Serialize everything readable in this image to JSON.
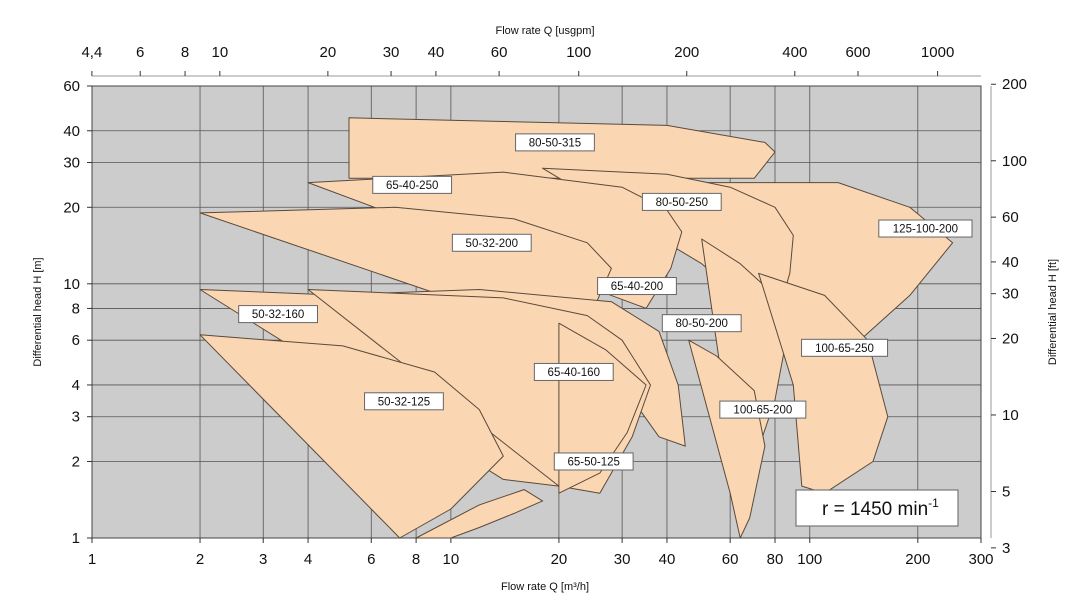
{
  "chart_data": {
    "type": "area",
    "title": "",
    "xlabel": "Flow rate Q [m³/h]",
    "ylabel": "Differential head H [m]",
    "x2label": "Flow rate Q [usgpm]",
    "y2label": "Differential head H [ft]",
    "xscale": "log",
    "yscale": "log",
    "xlim": [
      1,
      300
    ],
    "ylim": [
      1,
      60
    ],
    "grid": true,
    "plot_background": "#cccccc",
    "curve_fill": "#fbd6b3",
    "x_ticks": [
      1,
      2,
      3,
      4,
      6,
      8,
      10,
      20,
      30,
      40,
      60,
      80,
      100,
      200,
      300
    ],
    "y_ticks": [
      1,
      2,
      3,
      4,
      6,
      8,
      10,
      20,
      30,
      40,
      60
    ],
    "x2_ticks": [
      4.4,
      6,
      8,
      10,
      20,
      30,
      40,
      60,
      100,
      200,
      400,
      600,
      1000
    ],
    "y2_ticks": [
      3,
      5,
      10,
      20,
      30,
      40,
      60,
      100,
      200
    ],
    "x2_tick_labels": [
      "4,4",
      "6",
      "8",
      "10",
      "20",
      "30",
      "40",
      "60",
      "100",
      "200",
      "400",
      "600",
      "1000"
    ],
    "speed_label": "r = 1450 min",
    "speed_sup": "-1",
    "curves": [
      {
        "name": "80-50-315",
        "label": [
          19.5,
          36
        ],
        "points": [
          [
            5.2,
            45
          ],
          [
            40,
            42
          ],
          [
            75,
            36
          ],
          [
            80,
            33
          ],
          [
            70,
            26
          ],
          [
            5.2,
            26
          ]
        ]
      },
      {
        "name": "125-100-200",
        "label": [
          210,
          16.5
        ],
        "points": [
          [
            48,
            25
          ],
          [
            120,
            25
          ],
          [
            190,
            20
          ],
          [
            250,
            14.5
          ],
          [
            190,
            9
          ],
          [
            110,
            4.5
          ],
          [
            60,
            6.5
          ]
        ]
      },
      {
        "name": "80-50-250",
        "label": [
          44,
          21
        ],
        "points": [
          [
            18,
            28.5
          ],
          [
            40,
            27
          ],
          [
            60,
            24
          ],
          [
            80,
            20
          ],
          [
            90,
            15.5
          ],
          [
            88,
            11
          ],
          [
            80,
            7
          ],
          [
            70,
            8
          ],
          [
            50,
            12
          ]
        ]
      },
      {
        "name": "65-40-250",
        "label": [
          7.8,
          24.5
        ],
        "points": [
          [
            4,
            25
          ],
          [
            14,
            27.5
          ],
          [
            30,
            24
          ],
          [
            40,
            19.5
          ],
          [
            44,
            16
          ],
          [
            41,
            11.5
          ],
          [
            35,
            8
          ]
        ]
      },
      {
        "name": "50-32-200",
        "label": [
          13,
          14.5
        ],
        "points": [
          [
            2,
            19
          ],
          [
            7,
            20
          ],
          [
            15,
            18
          ],
          [
            24,
            14.5
          ],
          [
            28,
            11.5
          ],
          [
            25,
            8
          ],
          [
            22,
            6
          ]
        ]
      },
      {
        "name": "65-40-200",
        "label": [
          33,
          9.8
        ],
        "points": [
          [
            4.3,
            9
          ],
          [
            12,
            9.5
          ],
          [
            28,
            8.5
          ],
          [
            38,
            6.5
          ],
          [
            43,
            4
          ],
          [
            45,
            2.3
          ],
          [
            38,
            2.5
          ],
          [
            30,
            4
          ]
        ]
      },
      {
        "name": "80-50-200",
        "label": [
          50,
          7
        ],
        "points": [
          [
            50,
            15
          ],
          [
            64,
            12
          ],
          [
            80,
            9
          ],
          [
            85,
            5.5
          ],
          [
            80,
            3.5
          ],
          [
            70,
            2
          ],
          [
            65,
            1.2
          ],
          [
            60,
            2.5
          ]
        ]
      },
      {
        "name": "100-65-250",
        "label": [
          125,
          5.6
        ],
        "points": [
          [
            72,
            11
          ],
          [
            110,
            9
          ],
          [
            145,
            6
          ],
          [
            165,
            3
          ],
          [
            150,
            2
          ],
          [
            110,
            1.5
          ],
          [
            95,
            1.6
          ],
          [
            90,
            4
          ]
        ]
      },
      {
        "name": "100-65-200",
        "label": [
          74,
          3.2
        ],
        "points": [
          [
            46,
            6
          ],
          [
            55,
            5.2
          ],
          [
            70,
            3.8
          ],
          [
            75,
            2.3
          ],
          [
            68,
            1.2
          ],
          [
            64,
            1
          ],
          [
            60,
            1.5
          ]
        ]
      },
      {
        "name": "50-32-160",
        "label": [
          3.3,
          7.6
        ],
        "points": [
          [
            2,
            9.5
          ],
          [
            5,
            9
          ],
          [
            12,
            8
          ],
          [
            20,
            6
          ],
          [
            25,
            4.3
          ],
          [
            28,
            3
          ],
          [
            24,
            2
          ],
          [
            20,
            1.6
          ],
          [
            14,
            1.7
          ]
        ]
      },
      {
        "name": "65-40-160",
        "label": [
          22,
          4.5
        ],
        "points": [
          [
            4,
            9.5
          ],
          [
            14,
            8.8
          ],
          [
            24,
            7.5
          ],
          [
            30,
            6
          ],
          [
            36,
            4
          ],
          [
            32,
            2.5
          ],
          [
            26,
            1.5
          ],
          [
            20,
            1.6
          ]
        ]
      },
      {
        "name": "65-50-125",
        "label": [
          25,
          2
        ],
        "points": [
          [
            20,
            7
          ],
          [
            27,
            5.5
          ],
          [
            35,
            4
          ],
          [
            31,
            2.6
          ],
          [
            26,
            1.8
          ],
          [
            20,
            1.5
          ]
        ]
      },
      {
        "name": "50-32-125",
        "label": [
          7.4,
          3.45
        ],
        "points": [
          [
            2,
            6.3
          ],
          [
            5,
            5.7
          ],
          [
            9,
            4.5
          ],
          [
            12,
            3.2
          ],
          [
            14,
            2.1
          ],
          [
            10,
            1.3
          ],
          [
            7.2,
            1
          ]
        ],
        "extra": [
          [
            8,
            1
          ],
          [
            12,
            1.35
          ],
          [
            16,
            1.55
          ],
          [
            18,
            1.4
          ],
          [
            15,
            1.25
          ],
          [
            12,
            1.1
          ],
          [
            10,
            1
          ]
        ]
      }
    ]
  }
}
